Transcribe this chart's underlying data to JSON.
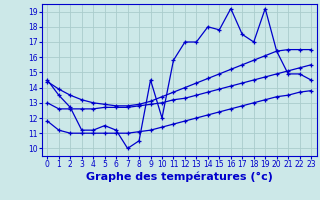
{
  "bg_color": "#cce8e8",
  "grid_color": "#aacccc",
  "line_color": "#0000cc",
  "xlabel": "Graphe des températures (°c)",
  "xlabel_fontsize": 8,
  "xlim": [
    -0.5,
    23.5
  ],
  "ylim": [
    9.5,
    19.5
  ],
  "xticks": [
    0,
    1,
    2,
    3,
    4,
    5,
    6,
    7,
    8,
    9,
    10,
    11,
    12,
    13,
    14,
    15,
    16,
    17,
    18,
    19,
    20,
    21,
    22,
    23
  ],
  "yticks": [
    10,
    11,
    12,
    13,
    14,
    15,
    16,
    17,
    18,
    19
  ],
  "tick_fontsize": 5.5,
  "series1_x": [
    0,
    1,
    2,
    3,
    4,
    5,
    6,
    7,
    8,
    9,
    10,
    11,
    12,
    13,
    14,
    15,
    16,
    17,
    18,
    19,
    20,
    21,
    22,
    23
  ],
  "series1_y": [
    14.5,
    13.5,
    12.7,
    11.2,
    11.2,
    11.5,
    11.2,
    10.0,
    10.5,
    14.5,
    12.0,
    15.8,
    17.0,
    17.0,
    18.0,
    17.8,
    19.2,
    17.5,
    17.0,
    19.2,
    16.4,
    14.9,
    14.9,
    14.5
  ],
  "series2_x": [
    0,
    1,
    2,
    3,
    4,
    5,
    6,
    7,
    8,
    9,
    10,
    11,
    12,
    13,
    14,
    15,
    16,
    17,
    18,
    19,
    20,
    21,
    22,
    23
  ],
  "series2_y": [
    13.0,
    12.6,
    12.6,
    12.6,
    12.6,
    12.7,
    12.7,
    12.7,
    12.8,
    12.9,
    13.0,
    13.2,
    13.3,
    13.5,
    13.7,
    13.9,
    14.1,
    14.3,
    14.5,
    14.7,
    14.9,
    15.1,
    15.3,
    15.5
  ],
  "series3_x": [
    0,
    1,
    2,
    3,
    4,
    5,
    6,
    7,
    8,
    9,
    10,
    11,
    12,
    13,
    14,
    15,
    16,
    17,
    18,
    19,
    20,
    21,
    22,
    23
  ],
  "series3_y": [
    14.4,
    13.9,
    13.5,
    13.2,
    13.0,
    12.9,
    12.8,
    12.8,
    12.9,
    13.1,
    13.4,
    13.7,
    14.0,
    14.3,
    14.6,
    14.9,
    15.2,
    15.5,
    15.8,
    16.1,
    16.4,
    16.5,
    16.5,
    16.5
  ],
  "series4_x": [
    0,
    1,
    2,
    3,
    4,
    5,
    6,
    7,
    8,
    9,
    10,
    11,
    12,
    13,
    14,
    15,
    16,
    17,
    18,
    19,
    20,
    21,
    22,
    23
  ],
  "series4_y": [
    11.8,
    11.2,
    11.0,
    11.0,
    11.0,
    11.0,
    11.0,
    11.0,
    11.1,
    11.2,
    11.4,
    11.6,
    11.8,
    12.0,
    12.2,
    12.4,
    12.6,
    12.8,
    13.0,
    13.2,
    13.4,
    13.5,
    13.7,
    13.8
  ]
}
